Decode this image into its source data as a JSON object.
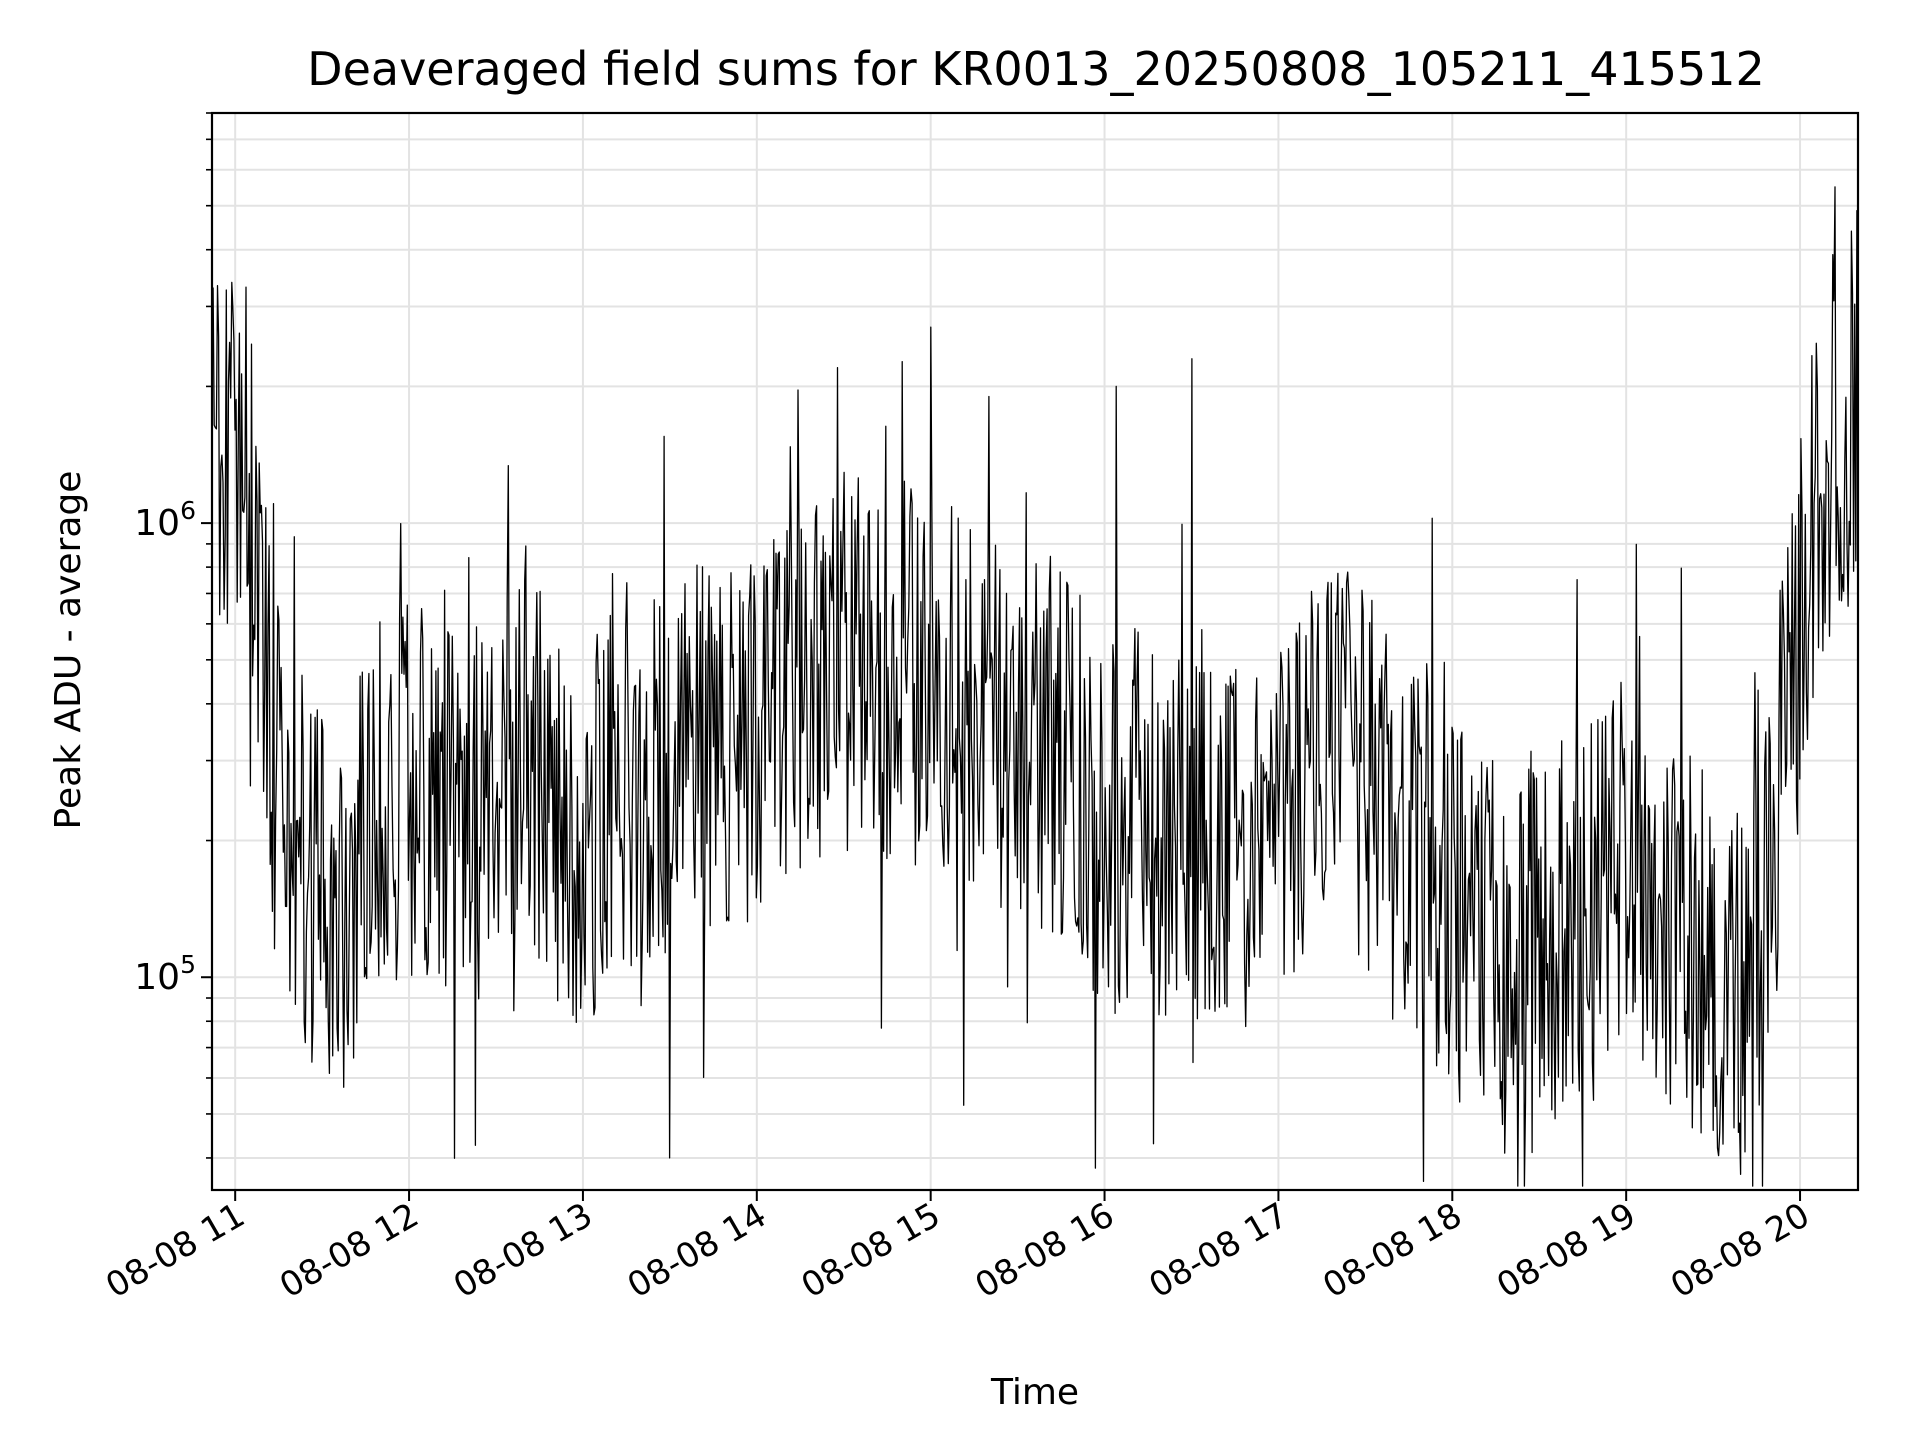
{
  "chart_data": {
    "type": "line",
    "title": "Deaveraged field sums for KR0013_20250808_105211_415512",
    "xlabel": "Time",
    "ylabel": "Peak ADU - average",
    "x_axis": {
      "type": "datetime",
      "range": [
        "2025-08-08T10:52",
        "2025-08-08T20:20"
      ],
      "tick_values": [
        "2025-08-08T11:00",
        "2025-08-08T12:00",
        "2025-08-08T13:00",
        "2025-08-08T14:00",
        "2025-08-08T15:00",
        "2025-08-08T16:00",
        "2025-08-08T17:00",
        "2025-08-08T18:00",
        "2025-08-08T19:00",
        "2025-08-08T20:00"
      ],
      "tick_labels": [
        "08-08 11",
        "08-08 12",
        "08-08 13",
        "08-08 14",
        "08-08 15",
        "08-08 16",
        "08-08 17",
        "08-08 18",
        "08-08 19",
        "08-08 20"
      ],
      "tick_rotation_deg": 30
    },
    "y_axis": {
      "scale": "log",
      "range": [
        34000,
        8000000
      ],
      "major_ticks": [
        {
          "value": 100000,
          "base": "10",
          "exp": "5"
        },
        {
          "value": 1000000,
          "base": "10",
          "exp": "6"
        }
      ]
    },
    "grid": true,
    "line_color": "#000000",
    "series": [
      {
        "note": "dense noisy series; level envelope read from the chart (time, typical peak ADU); local peaks/dips listed separately",
        "level_points": [
          [
            "2025-08-08T10:52",
            1300000
          ],
          [
            "2025-08-08T10:56",
            1500000
          ],
          [
            "2025-08-08T11:00",
            1600000
          ],
          [
            "2025-08-08T11:05",
            1200000
          ],
          [
            "2025-08-08T11:10",
            500000
          ],
          [
            "2025-08-08T11:15",
            250000
          ],
          [
            "2025-08-08T11:22",
            180000
          ],
          [
            "2025-08-08T11:30",
            150000
          ],
          [
            "2025-08-08T11:38",
            140000
          ],
          [
            "2025-08-08T11:45",
            200000
          ],
          [
            "2025-08-08T11:52",
            250000
          ],
          [
            "2025-08-08T12:00",
            260000
          ],
          [
            "2025-08-08T12:10",
            240000
          ],
          [
            "2025-08-08T12:20",
            200000
          ],
          [
            "2025-08-08T12:30",
            280000
          ],
          [
            "2025-08-08T12:40",
            350000
          ],
          [
            "2025-08-08T12:50",
            220000
          ],
          [
            "2025-08-08T13:00",
            200000
          ],
          [
            "2025-08-08T13:15",
            280000
          ],
          [
            "2025-08-08T13:30",
            300000
          ],
          [
            "2025-08-08T13:45",
            330000
          ],
          [
            "2025-08-08T14:00",
            350000
          ],
          [
            "2025-08-08T14:15",
            400000
          ],
          [
            "2025-08-08T14:30",
            500000
          ],
          [
            "2025-08-08T14:45",
            480000
          ],
          [
            "2025-08-08T15:00",
            450000
          ],
          [
            "2025-08-08T15:15",
            380000
          ],
          [
            "2025-08-08T15:30",
            350000
          ],
          [
            "2025-08-08T15:45",
            320000
          ],
          [
            "2025-08-08T16:00",
            220000
          ],
          [
            "2025-08-08T16:15",
            220000
          ],
          [
            "2025-08-08T16:30",
            200000
          ],
          [
            "2025-08-08T16:45",
            180000
          ],
          [
            "2025-08-08T17:00",
            220000
          ],
          [
            "2025-08-08T17:15",
            320000
          ],
          [
            "2025-08-08T17:30",
            280000
          ],
          [
            "2025-08-08T17:45",
            180000
          ],
          [
            "2025-08-08T18:00",
            140000
          ],
          [
            "2025-08-08T18:15",
            120000
          ],
          [
            "2025-08-08T18:30",
            120000
          ],
          [
            "2025-08-08T18:45",
            130000
          ],
          [
            "2025-08-08T19:00",
            200000
          ],
          [
            "2025-08-08T19:10",
            150000
          ],
          [
            "2025-08-08T19:20",
            120000
          ],
          [
            "2025-08-08T19:30",
            110000
          ],
          [
            "2025-08-08T19:40",
            90000
          ],
          [
            "2025-08-08T19:48",
            130000
          ],
          [
            "2025-08-08T19:55",
            350000
          ],
          [
            "2025-08-08T20:00",
            600000
          ],
          [
            "2025-08-08T20:05",
            1000000
          ],
          [
            "2025-08-08T20:10",
            1500000
          ],
          [
            "2025-08-08T20:15",
            1600000
          ],
          [
            "2025-08-08T20:20",
            1800000
          ]
        ],
        "notable_peaks": [
          [
            "2025-08-08T10:58",
            2500000
          ],
          [
            "2025-08-08T14:28",
            2200000
          ],
          [
            "2025-08-08T15:00",
            2700000
          ],
          [
            "2025-08-08T15:20",
            1900000
          ],
          [
            "2025-08-08T16:04",
            2000000
          ],
          [
            "2025-08-08T16:30",
            2300000
          ],
          [
            "2025-08-08T20:12",
            5500000
          ],
          [
            "2025-08-08T20:18",
            3200000
          ]
        ],
        "notable_dips": [
          [
            "2025-08-08T13:30",
            40000
          ],
          [
            "2025-08-08T15:57",
            38000
          ],
          [
            "2025-08-08T16:17",
            43000
          ],
          [
            "2025-08-08T18:18",
            41000
          ],
          [
            "2025-08-08T19:30",
            46000
          ]
        ]
      }
    ]
  }
}
